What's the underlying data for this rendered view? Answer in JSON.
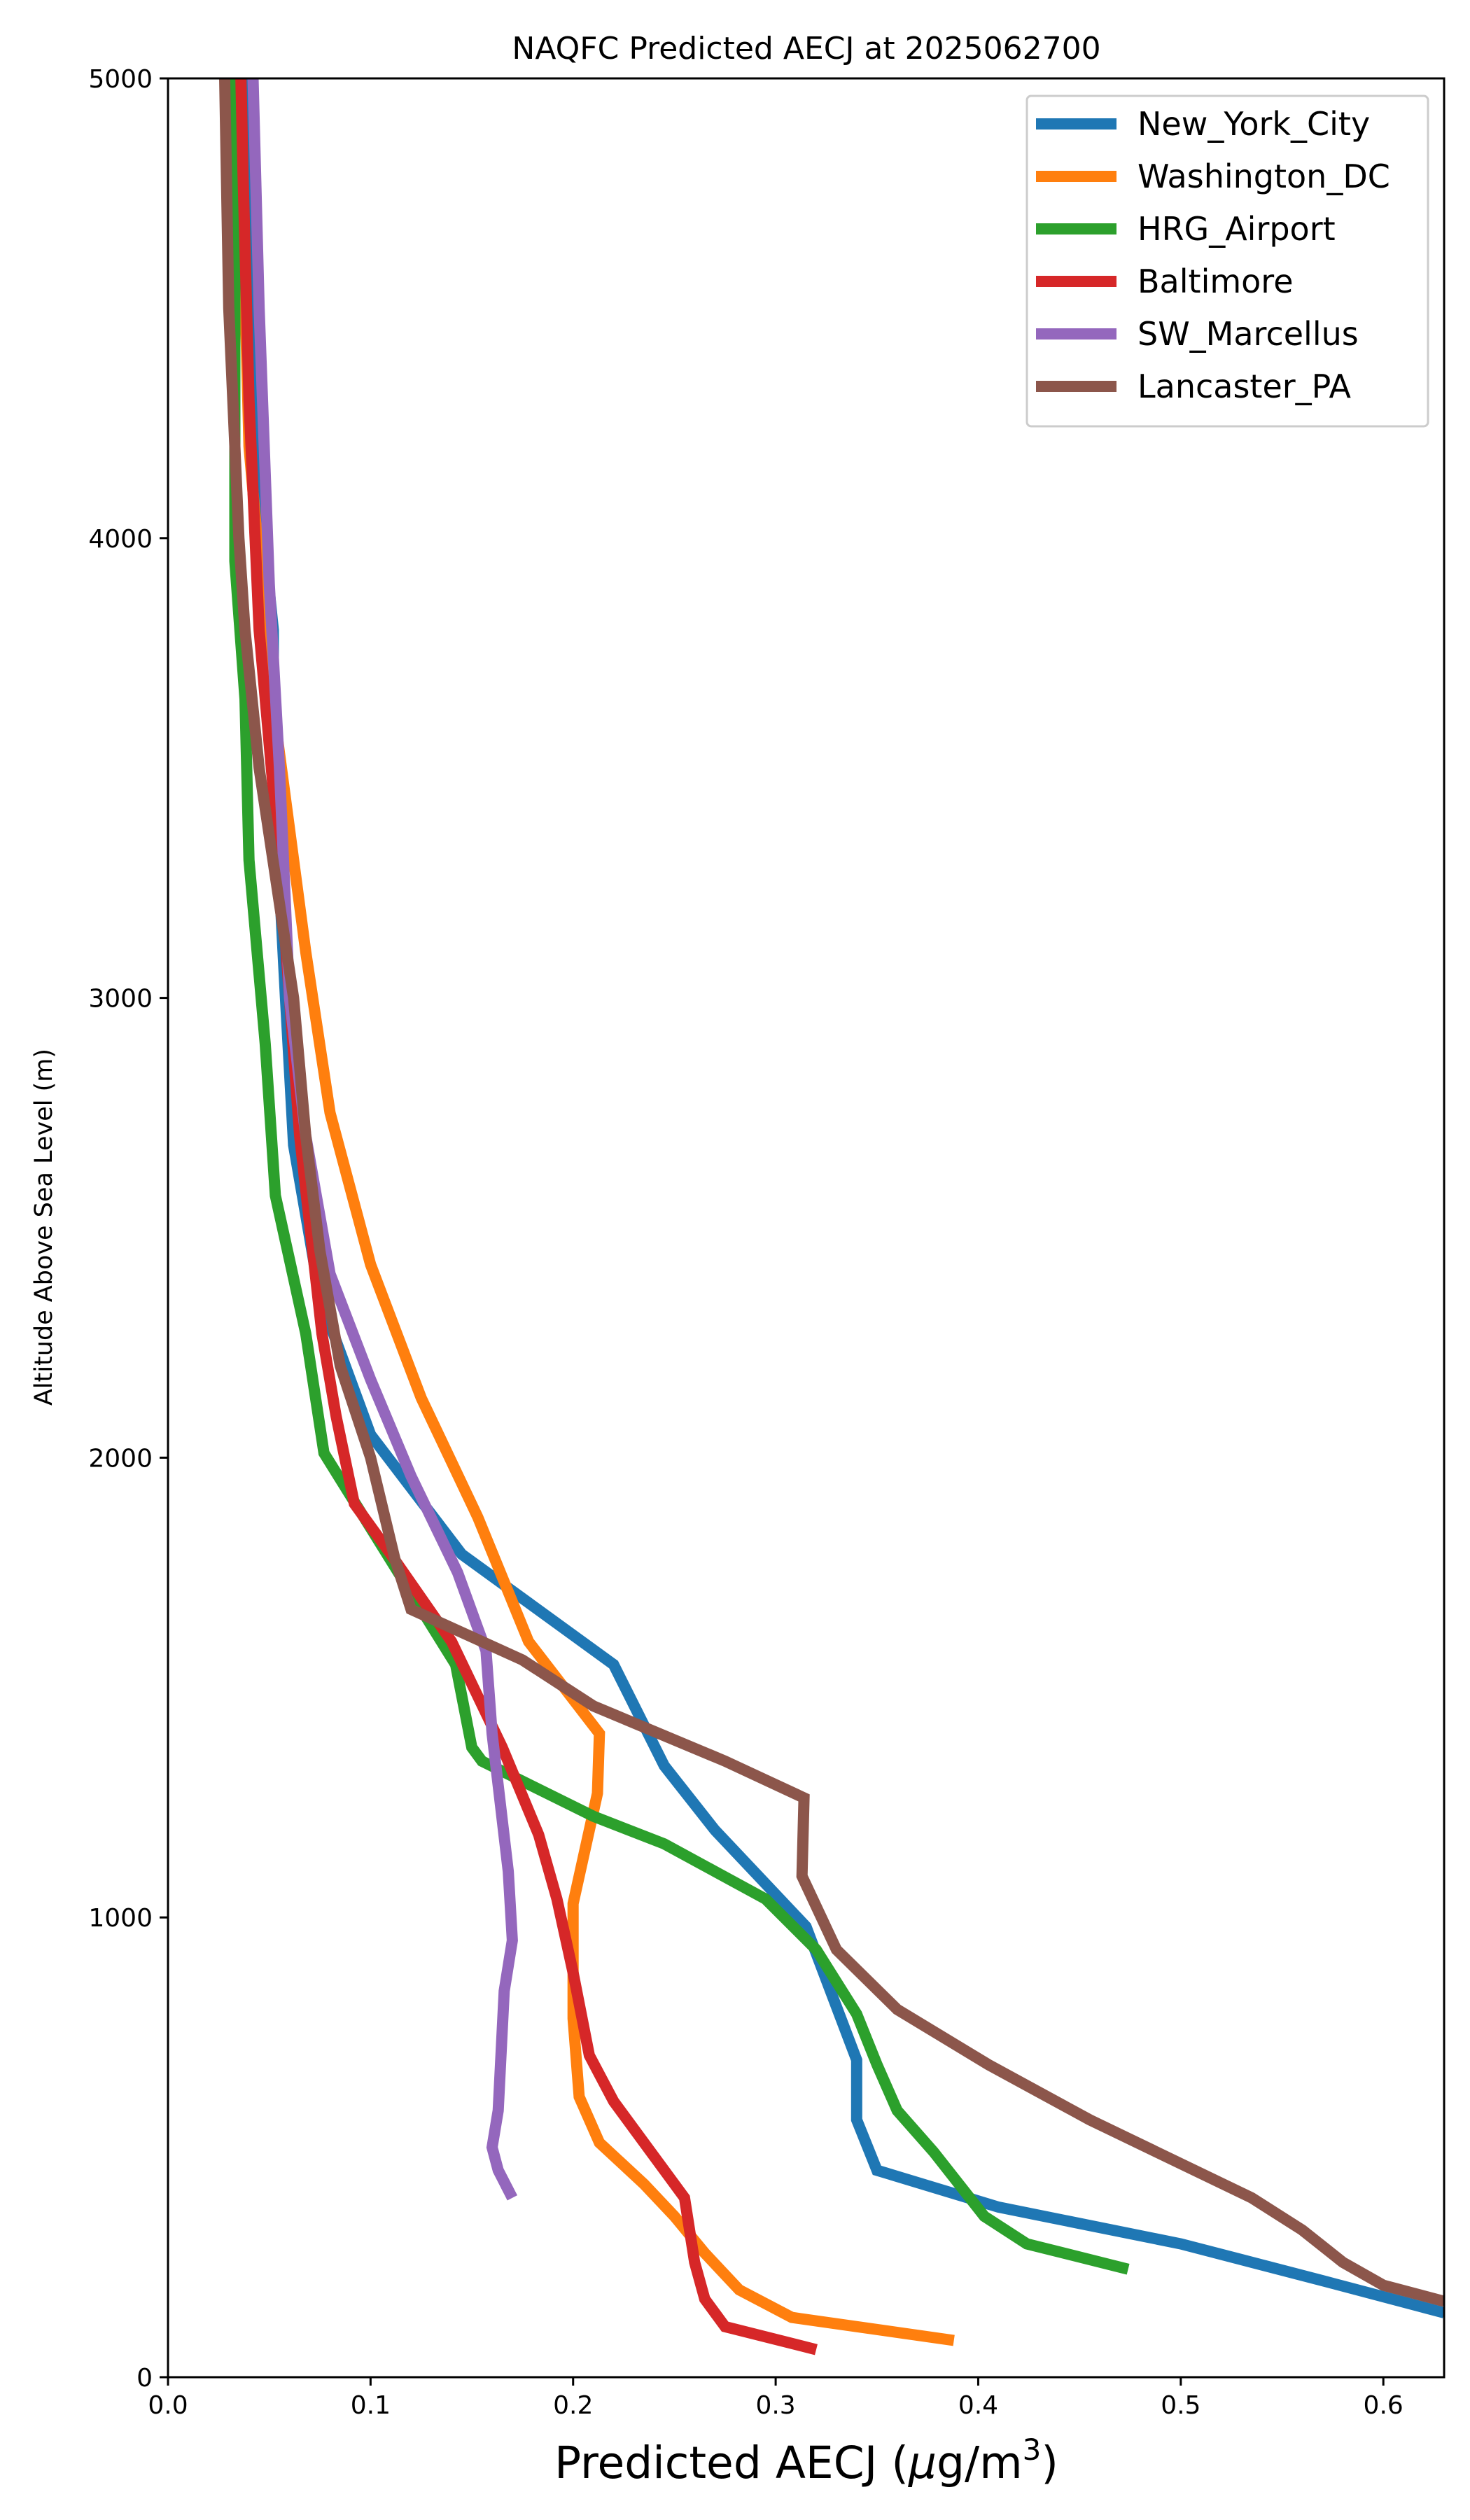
{
  "chart_data": {
    "type": "line",
    "title": "NAQFC Predicted AECJ at 2025062700",
    "xlabel": "Predicted AECJ (μg/m³)",
    "ylabel": "Altitude Above Sea Level (m)",
    "xlim": [
      0.0,
      0.63
    ],
    "ylim": [
      0,
      5000
    ],
    "x_ticks": [
      "0.0",
      "0.1",
      "0.2",
      "0.3",
      "0.4",
      "0.5",
      "0.6"
    ],
    "x_tick_values": [
      0.0,
      0.1,
      0.2,
      0.3,
      0.4,
      0.5,
      0.6
    ],
    "y_ticks": [
      "0",
      "1000",
      "2000",
      "3000",
      "4000",
      "5000"
    ],
    "y_tick_values": [
      0,
      1000,
      2000,
      3000,
      4000,
      5000
    ],
    "grid": false,
    "legend_position": "top-right",
    "series": [
      {
        "name": "New_York_City",
        "color": "#1f77b4",
        "points": [
          [
            0.63,
            140
          ],
          [
            0.57,
            210
          ],
          [
            0.5,
            290
          ],
          [
            0.41,
            370
          ],
          [
            0.35,
            450
          ],
          [
            0.34,
            560
          ],
          [
            0.34,
            690
          ],
          [
            0.315,
            980
          ],
          [
            0.27,
            1190
          ],
          [
            0.245,
            1330
          ],
          [
            0.22,
            1550
          ],
          [
            0.145,
            1790
          ],
          [
            0.1,
            2050
          ],
          [
            0.075,
            2350
          ],
          [
            0.062,
            2680
          ],
          [
            0.058,
            3000
          ],
          [
            0.052,
            3500
          ],
          [
            0.052,
            3800
          ],
          [
            0.045,
            4100
          ],
          [
            0.04,
            5000
          ]
        ]
      },
      {
        "name": "Washington_DC",
        "color": "#ff7f0e",
        "points": [
          [
            0.388,
            80
          ],
          [
            0.308,
            130
          ],
          [
            0.282,
            190
          ],
          [
            0.265,
            270
          ],
          [
            0.25,
            350
          ],
          [
            0.235,
            420
          ],
          [
            0.213,
            510
          ],
          [
            0.203,
            610
          ],
          [
            0.2,
            780
          ],
          [
            0.2,
            1030
          ],
          [
            0.212,
            1270
          ],
          [
            0.213,
            1400
          ],
          [
            0.178,
            1600
          ],
          [
            0.153,
            1870
          ],
          [
            0.125,
            2130
          ],
          [
            0.1,
            2420
          ],
          [
            0.08,
            2750
          ],
          [
            0.068,
            3100
          ],
          [
            0.05,
            3700
          ],
          [
            0.04,
            4200
          ],
          [
            0.037,
            4700
          ],
          [
            0.035,
            5000
          ]
        ]
      },
      {
        "name": "HRG_Airport",
        "color": "#2ca02c",
        "points": [
          [
            0.474,
            235
          ],
          [
            0.424,
            290
          ],
          [
            0.403,
            350
          ],
          [
            0.378,
            490
          ],
          [
            0.36,
            580
          ],
          [
            0.35,
            680
          ],
          [
            0.34,
            790
          ],
          [
            0.32,
            930
          ],
          [
            0.295,
            1040
          ],
          [
            0.245,
            1160
          ],
          [
            0.21,
            1220
          ],
          [
            0.155,
            1340
          ],
          [
            0.15,
            1370
          ],
          [
            0.142,
            1550
          ],
          [
            0.077,
            2010
          ],
          [
            0.068,
            2270
          ],
          [
            0.053,
            2570
          ],
          [
            0.048,
            2900
          ],
          [
            0.04,
            3300
          ],
          [
            0.038,
            3650
          ],
          [
            0.033,
            3950
          ],
          [
            0.033,
            5000
          ]
        ]
      },
      {
        "name": "Baltimore",
        "color": "#d62728",
        "points": [
          [
            0.32,
            60
          ],
          [
            0.275,
            110
          ],
          [
            0.265,
            170
          ],
          [
            0.26,
            250
          ],
          [
            0.255,
            390
          ],
          [
            0.22,
            600
          ],
          [
            0.208,
            700
          ],
          [
            0.2,
            880
          ],
          [
            0.192,
            1040
          ],
          [
            0.183,
            1180
          ],
          [
            0.165,
            1370
          ],
          [
            0.14,
            1600
          ],
          [
            0.11,
            1790
          ],
          [
            0.092,
            1900
          ],
          [
            0.083,
            2090
          ],
          [
            0.076,
            2270
          ],
          [
            0.065,
            2700
          ],
          [
            0.055,
            3300
          ],
          [
            0.045,
            3800
          ],
          [
            0.04,
            4300
          ],
          [
            0.037,
            4800
          ],
          [
            0.036,
            5000
          ]
        ]
      },
      {
        "name": "SW_Marcellus",
        "color": "#9467bd",
        "points": [
          [
            0.17,
            390
          ],
          [
            0.163,
            450
          ],
          [
            0.16,
            500
          ],
          [
            0.163,
            580
          ],
          [
            0.166,
            840
          ],
          [
            0.17,
            950
          ],
          [
            0.168,
            1100
          ],
          [
            0.16,
            1400
          ],
          [
            0.157,
            1580
          ],
          [
            0.143,
            1750
          ],
          [
            0.12,
            1960
          ],
          [
            0.1,
            2170
          ],
          [
            0.08,
            2400
          ],
          [
            0.068,
            2700
          ],
          [
            0.06,
            3000
          ],
          [
            0.055,
            3500
          ],
          [
            0.05,
            3900
          ],
          [
            0.045,
            4500
          ],
          [
            0.042,
            5000
          ]
        ]
      },
      {
        "name": "Lancaster_PA",
        "color": "#8c564b",
        "points": [
          [
            0.63,
            165
          ],
          [
            0.6,
            200
          ],
          [
            0.58,
            250
          ],
          [
            0.56,
            320
          ],
          [
            0.535,
            390
          ],
          [
            0.455,
            560
          ],
          [
            0.405,
            680
          ],
          [
            0.36,
            800
          ],
          [
            0.33,
            930
          ],
          [
            0.313,
            1090
          ],
          [
            0.314,
            1260
          ],
          [
            0.275,
            1340
          ],
          [
            0.21,
            1460
          ],
          [
            0.175,
            1560
          ],
          [
            0.12,
            1670
          ],
          [
            0.112,
            1780
          ],
          [
            0.1,
            2000
          ],
          [
            0.085,
            2200
          ],
          [
            0.075,
            2450
          ],
          [
            0.068,
            2700
          ],
          [
            0.062,
            3000
          ],
          [
            0.045,
            3500
          ],
          [
            0.038,
            3800
          ],
          [
            0.035,
            4000
          ],
          [
            0.03,
            4500
          ],
          [
            0.028,
            5000
          ]
        ]
      }
    ]
  }
}
